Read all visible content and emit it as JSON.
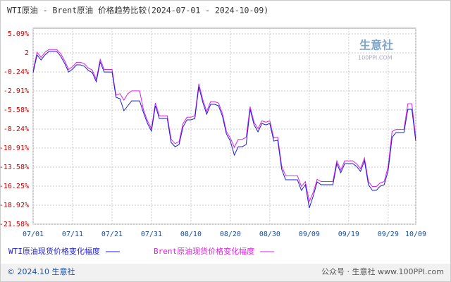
{
  "chart_data": {
    "type": "line",
    "title": "WTI原油 - Brent原油 价格趋势比较(2024-07-01 - 2024-10-09)",
    "watermark": "生意社",
    "watermark_sub": "100PPI.COM",
    "footer_left": "© 2024.10 生意社",
    "footer_right": "公众号 · 生意社  www.100PPI.com",
    "categories": [
      "07/01",
      null,
      null,
      null,
      null,
      null,
      null,
      null,
      null,
      null,
      "07/11",
      null,
      null,
      null,
      null,
      null,
      null,
      null,
      null,
      null,
      "07/21",
      null,
      null,
      null,
      null,
      null,
      null,
      null,
      null,
      null,
      "07/31",
      null,
      null,
      null,
      null,
      null,
      null,
      null,
      null,
      null,
      "08/10",
      null,
      null,
      null,
      null,
      null,
      null,
      null,
      null,
      null,
      "08/20",
      null,
      null,
      null,
      null,
      null,
      null,
      null,
      null,
      null,
      "08/30",
      null,
      null,
      null,
      null,
      null,
      null,
      null,
      null,
      null,
      "09/09",
      null,
      null,
      null,
      null,
      null,
      null,
      null,
      null,
      null,
      "09/19",
      null,
      null,
      null,
      null,
      null,
      null,
      null,
      null,
      null,
      "09/29",
      null,
      null,
      null,
      null,
      null,
      null,
      "10/09"
    ],
    "series": [
      {
        "name": "WTI原油现货价格变化幅度",
        "color": "#1c1cd8",
        "values": [
          -0.34,
          2.13,
          1.43,
          2.13,
          2.62,
          2.62,
          2.62,
          1.93,
          0.94,
          -0.25,
          0.15,
          0.74,
          0.74,
          0.55,
          -0.05,
          -0.34,
          -1.63,
          1.14,
          -0.25,
          -0.25,
          -0.25,
          -3.8,
          -4.0,
          -5.68,
          -4.99,
          -4.3,
          -4.3,
          -4.3,
          -5.98,
          -7.46,
          -8.54,
          -4.99,
          -6.77,
          -6.77,
          -6.77,
          -10.13,
          -10.72,
          -10.42,
          -7.95,
          -6.96,
          -6.96,
          -6.77,
          -2.32,
          -4.49,
          -6.17,
          -4.79,
          -4.79,
          -4.99,
          -6.47,
          -8.94,
          -9.93,
          -11.9,
          -10.72,
          -10.72,
          -10.42,
          -5.48,
          -7.66,
          -8.64,
          -7.46,
          -7.66,
          -7.46,
          -9.93,
          -9.83,
          -13.88,
          -15.36,
          -15.36,
          -15.36,
          -15.36,
          -16.84,
          -16.05,
          -19.31,
          -17.63,
          -15.66,
          -16.05,
          -16.05,
          -16.05,
          -16.05,
          -13.09,
          -14.37,
          -13.09,
          -13.09,
          -13.09,
          -13.48,
          -14.18,
          -12.69,
          -16.05,
          -16.84,
          -16.84,
          -16.25,
          -16.05,
          -14.08,
          -9.43,
          -8.74,
          -8.74,
          -8.74,
          -5.48,
          -5.48,
          -9.93
        ]
      },
      {
        "name": "Brent原油现货价格变化幅度",
        "color": "#e020e0",
        "values": [
          -0.1,
          2.5,
          1.8,
          2.5,
          2.9,
          2.9,
          2.9,
          2.3,
          1.3,
          0.1,
          0.5,
          1.1,
          1.1,
          0.9,
          0.3,
          0.0,
          -1.3,
          1.5,
          0.1,
          0.1,
          0.1,
          -3.5,
          -3.3,
          -4.2,
          -3.3,
          -2.9,
          -2.9,
          -2.9,
          -5.6,
          -7.1,
          -8.2,
          -4.6,
          -6.4,
          -6.4,
          -6.4,
          -9.7,
          -10.3,
          -10.0,
          -7.5,
          -6.6,
          -6.6,
          -6.4,
          -1.9,
          -4.1,
          -5.8,
          -4.4,
          -4.4,
          -4.6,
          -6.1,
          -8.6,
          -9.5,
          -10.8,
          -9.7,
          -9.7,
          -9.4,
          -5.1,
          -7.3,
          -8.2,
          -7.1,
          -7.3,
          -7.1,
          -9.5,
          -9.4,
          -13.4,
          -14.8,
          -14.8,
          -14.8,
          -14.8,
          -16.3,
          -15.6,
          -18.4,
          -17.1,
          -15.3,
          -15.6,
          -15.6,
          -15.6,
          -15.6,
          -12.7,
          -14.0,
          -12.7,
          -12.7,
          -12.7,
          -13.1,
          -13.8,
          -12.3,
          -15.6,
          -16.3,
          -16.3,
          -15.8,
          -15.6,
          -13.5,
          -8.6,
          -8.3,
          -8.3,
          -8.3,
          -4.7,
          -4.7,
          -9.5
        ]
      }
    ],
    "ylim": [
      -21.58,
      5.09
    ],
    "yticks": [
      {
        "value": 5.09,
        "label": "5.09%"
      },
      {
        "value": 2.42,
        "label": "2"
      },
      {
        "value": -0.24,
        "label": "-0.24%"
      },
      {
        "value": -2.91,
        "label": "-2.91%"
      },
      {
        "value": -5.58,
        "label": "-5.58%"
      },
      {
        "value": -8.24,
        "label": "-8.24%"
      },
      {
        "value": -10.91,
        "label": "-10.91%"
      },
      {
        "value": -13.58,
        "label": "-13.58%"
      },
      {
        "value": -16.25,
        "label": "-16.25%"
      },
      {
        "value": -18.92,
        "label": "-18.92%"
      },
      {
        "value": -21.58,
        "label": "-21.58%"
      }
    ],
    "grid": true
  }
}
